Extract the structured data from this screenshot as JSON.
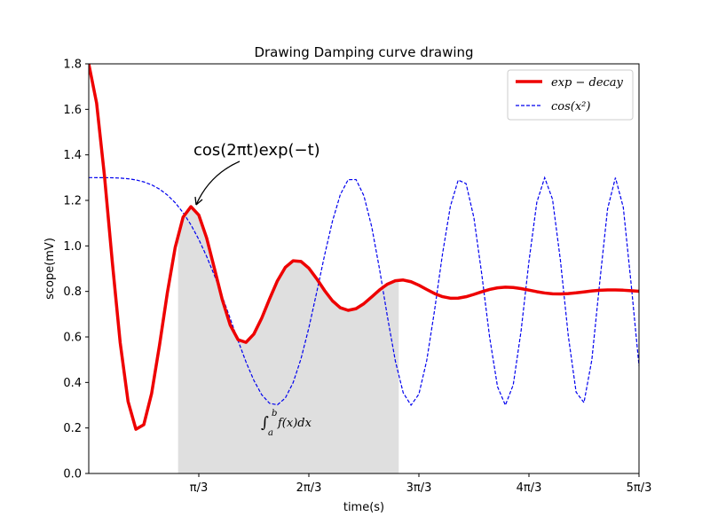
{
  "chart_data": {
    "type": "line",
    "title": "Drawing Damping curve drawing",
    "xlabel": "time(s)",
    "ylabel": "scope(mV)",
    "xlim": [
      0,
      5.236
    ],
    "ylim": [
      0,
      1.8
    ],
    "x_ticks": [
      {
        "value": 1.0472,
        "label": "π/3"
      },
      {
        "value": 2.0944,
        "label": "2π/3"
      },
      {
        "value": 3.1416,
        "label": "3π/3"
      },
      {
        "value": 4.1888,
        "label": "4π/3"
      },
      {
        "value": 5.236,
        "label": "5π/3"
      }
    ],
    "y_ticks": [
      0.0,
      0.2,
      0.4,
      0.6,
      0.8,
      1.0,
      1.2,
      1.4,
      1.6,
      1.8
    ],
    "grid": false,
    "legend_position": "top-right",
    "series": [
      {
        "name": "exp − decay",
        "style": "solid",
        "color": "#ee0000",
        "function": "0.8 + cos(2πt)·exp(−t)",
        "x_range": [
          0,
          5.236
        ]
      },
      {
        "name": "cos(x²)",
        "style": "dashed",
        "color": "#0000ee",
        "function": "0.8 + 0.5·cos(t²)",
        "x_range": [
          0,
          5.236
        ]
      }
    ],
    "shaded_region": {
      "x_range": [
        0.85,
        2.95
      ],
      "under_series": "exp − decay",
      "color": "#dfdfdf",
      "label": "∫ab f(x)dx"
    },
    "annotations": [
      {
        "text": "cos(2πt)exp(−t)",
        "point": [
          1.0,
          1.17
        ]
      }
    ]
  },
  "text": {
    "title": "Drawing Damping curve drawing",
    "xlabel": "time(s)",
    "ylabel": "scope(mV)",
    "annotation": "cos(2πt)exp(−t)",
    "integral_symbol": "∫",
    "integral_upper": "b",
    "integral_lower": "a",
    "integral_body": "f(x)dx",
    "legend_1": "exp − decay",
    "legend_2": "cos(x²)"
  }
}
